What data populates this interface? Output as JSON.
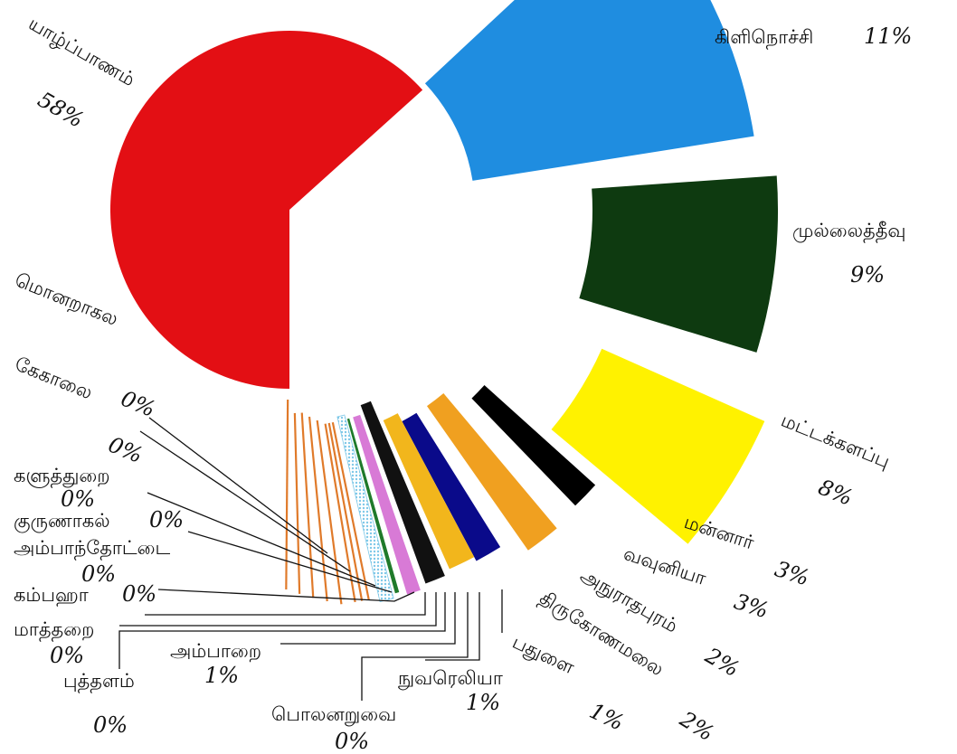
{
  "chart_data": {
    "type": "pie",
    "title": "",
    "slices": [
      {
        "label": "யாழ்ப்பாணம்",
        "value": 58,
        "value_label": "58%",
        "color": "#e30f14",
        "pattern": "solid"
      },
      {
        "label": "கிளிநொச்சி",
        "value": 11,
        "value_label": "11%",
        "color": "#1f8de0",
        "pattern": "solid"
      },
      {
        "label": "முல்லைத்தீவு",
        "value": 9,
        "value_label": "9%",
        "color": "#0e3a10",
        "pattern": "solid"
      },
      {
        "label": "மட்டக்களப்பு",
        "value": 8,
        "value_label": "8%",
        "color": "#fff200",
        "pattern": "solid"
      },
      {
        "label": "மன்னார்",
        "value": 3,
        "value_label": "3%",
        "color": "#000000",
        "pattern": "solid"
      },
      {
        "label": "வவுனியா",
        "value": 3,
        "value_label": "3%",
        "color": "#f0a020",
        "pattern": "solid"
      },
      {
        "label": "அநுராதபுரம்",
        "value": 2,
        "value_label": "2%",
        "color": "#0a0a8a",
        "pattern": "solid"
      },
      {
        "label": "திருகோணமலை",
        "value": 2,
        "value_label": "2%",
        "color": "#f2b61c",
        "pattern": "solid"
      },
      {
        "label": "பதுளை",
        "value": 1,
        "value_label": "1%",
        "color": "#111111",
        "pattern": "solid"
      },
      {
        "label": "நுவரெலியா",
        "value": 1,
        "value_label": "1%",
        "color": "#d87ad6",
        "pattern": "solid"
      },
      {
        "label": "பொலனறுவை",
        "value": 0,
        "value_label": "0%",
        "color": "#1f7a2a",
        "pattern": "solid"
      },
      {
        "label": "அம்பாறை",
        "value": 1,
        "value_label": "1%",
        "color": "#7ec8e8",
        "pattern": "dotted"
      },
      {
        "label": "புத்தளம்",
        "value": 0,
        "value_label": "0%",
        "color": "#e07a2a",
        "pattern": "outline"
      },
      {
        "label": "மாத்தறை",
        "value": 0,
        "value_label": "0%",
        "color": "#e07a2a",
        "pattern": "outline"
      },
      {
        "label": "கம்பஹா",
        "value": 0,
        "value_label": "0%",
        "color": "#e07a2a",
        "pattern": "outline"
      },
      {
        "label": "அம்பாந்தோட்டை",
        "value": 0,
        "value_label": "0%",
        "color": "#e07a2a",
        "pattern": "outline"
      },
      {
        "label": "குருணாகல்",
        "value": 0,
        "value_label": "0%",
        "color": "#e07a2a",
        "pattern": "outline"
      },
      {
        "label": "களுத்துறை",
        "value": 0,
        "value_label": "0%",
        "color": "#e07a2a",
        "pattern": "outline"
      },
      {
        "label": "கேகாலை",
        "value": 0,
        "value_label": "0%",
        "color": "#e07a2a",
        "pattern": "outline"
      },
      {
        "label": "மொனறாகல",
        "value": 0,
        "value_label": "0%",
        "color": "#e07a2a",
        "pattern": "outline"
      }
    ]
  }
}
